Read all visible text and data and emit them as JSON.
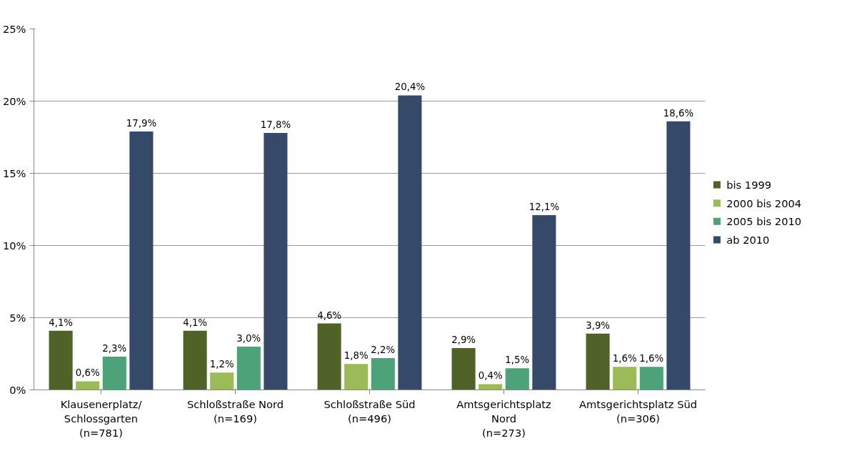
{
  "chart_data": {
    "type": "bar",
    "categories": [
      "Klausenerplatz/\nSchlossgarten\n(n=781)",
      "Schloßstraße Nord\n(n=169)",
      "Schloßstraße Süd\n(n=496)",
      "Amtsgerichtsplatz\nNord\n(n=273)",
      "Amtsgerichtsplatz Süd\n(n=306)"
    ],
    "series": [
      {
        "name": "bis 1999",
        "color": "#4f6228",
        "values": [
          4.1,
          4.1,
          4.6,
          2.9,
          3.9
        ],
        "value_labels": [
          "4,1%",
          "4,1%",
          "4,6%",
          "2,9%",
          "3,9%"
        ]
      },
      {
        "name": "2000 bis 2004",
        "color": "#9bbb59",
        "values": [
          0.6,
          1.2,
          1.8,
          0.4,
          1.6
        ],
        "value_labels": [
          "0,6%",
          "1,2%",
          "1,8%",
          "0,4%",
          "1,6%"
        ]
      },
      {
        "name": "2005 bis 2010",
        "color": "#4ea27a",
        "values": [
          2.3,
          3.0,
          2.2,
          1.5,
          1.6
        ],
        "value_labels": [
          "2,3%",
          "3,0%",
          "2,2%",
          "1,5%",
          "1,6%"
        ]
      },
      {
        "name": "ab 2010",
        "color": "#344a68",
        "values": [
          17.9,
          17.8,
          20.4,
          12.1,
          18.6
        ],
        "value_labels": [
          "17,9%",
          "17,8%",
          "20,4%",
          "12,1%",
          "18,6%"
        ]
      }
    ],
    "ylim": [
      0,
      25
    ],
    "yticks": [
      {
        "value": 0,
        "label": "0%"
      },
      {
        "value": 5,
        "label": "5%"
      },
      {
        "value": 10,
        "label": "10%"
      },
      {
        "value": 15,
        "label": "15%"
      },
      {
        "value": 20,
        "label": "20%"
      },
      {
        "value": 25,
        "label": "25%"
      }
    ],
    "grid": "y",
    "legend": "right"
  }
}
